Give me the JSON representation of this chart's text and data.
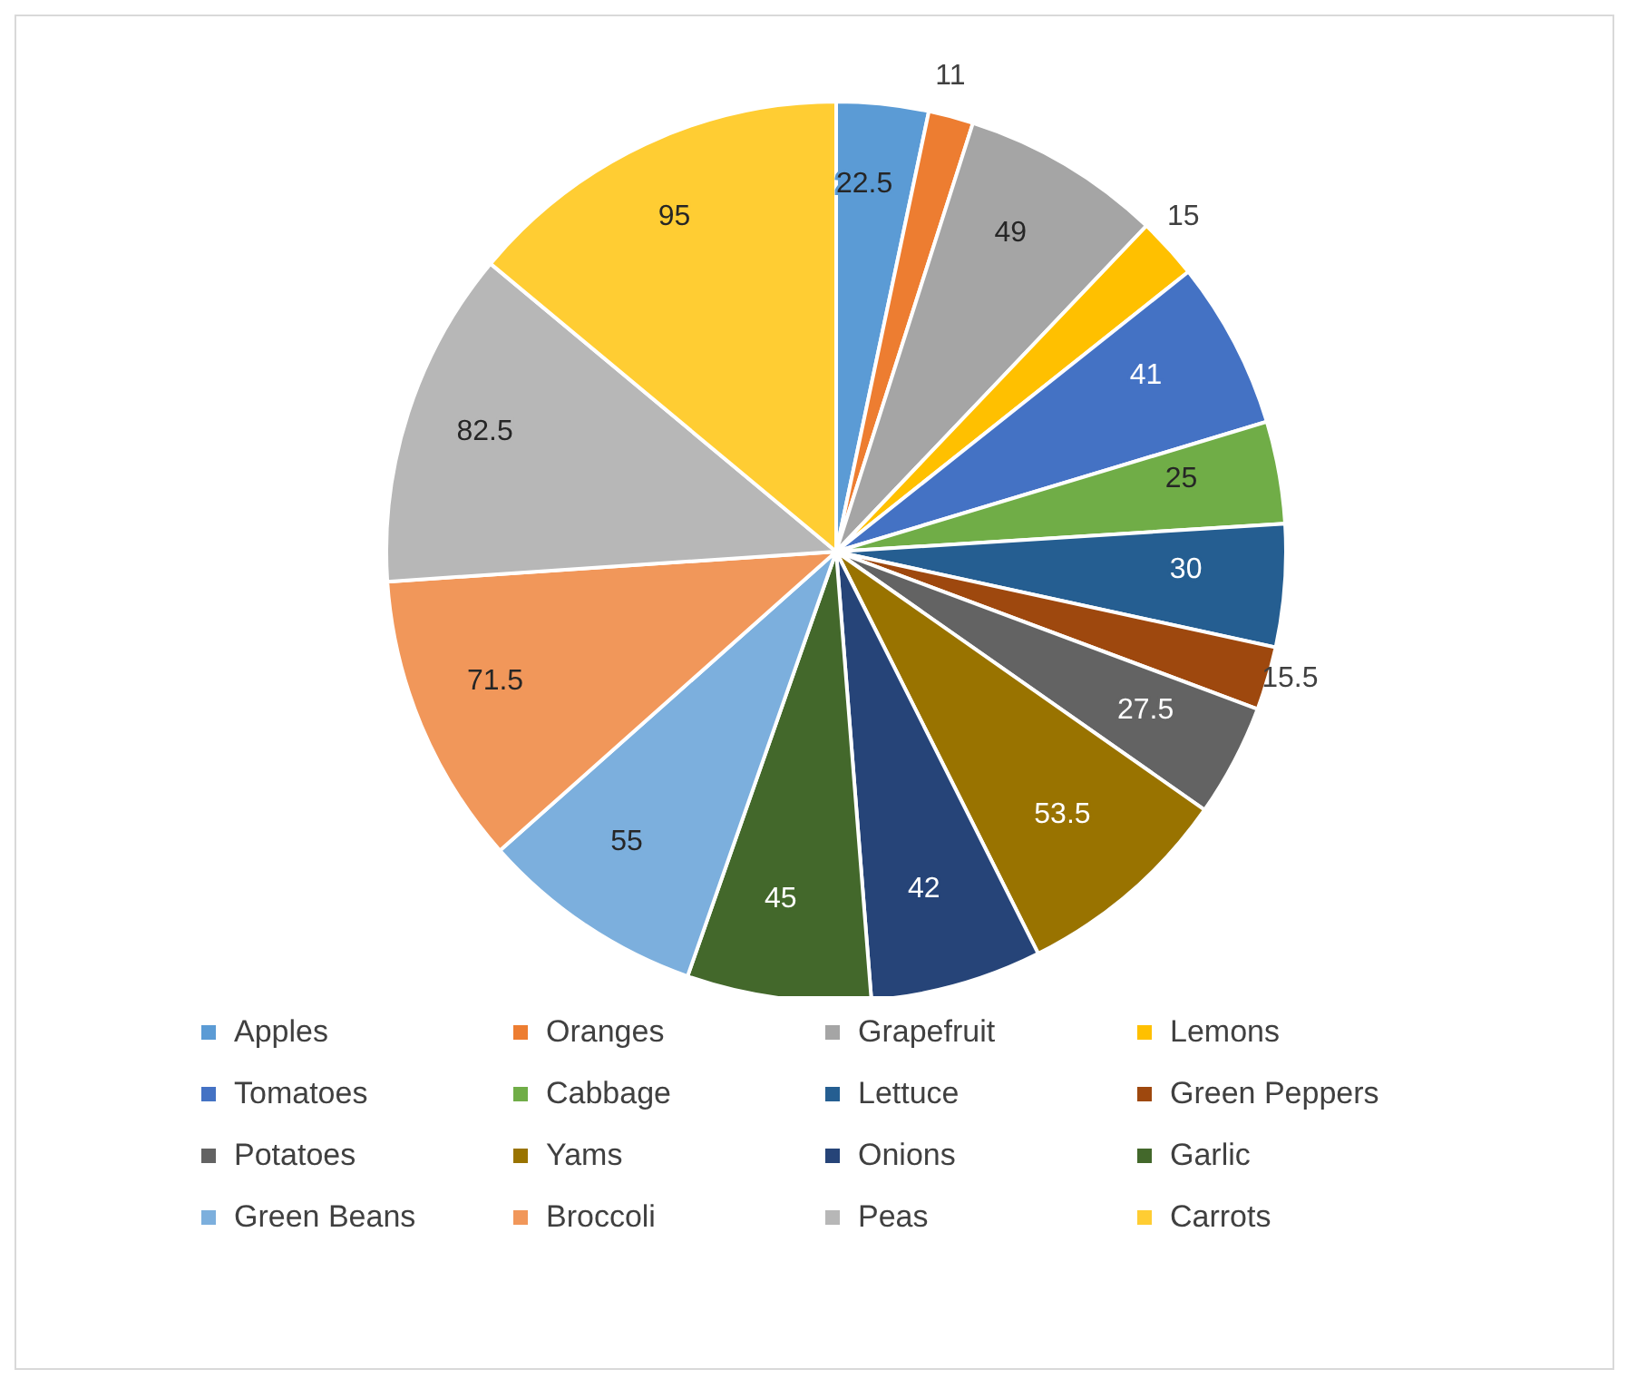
{
  "chart_data": {
    "type": "pie",
    "categories": [
      "Apples",
      "Oranges",
      "Grapefruit",
      "Lemons",
      "Tomatoes",
      "Cabbage",
      "Lettuce",
      "Green Peppers",
      "Potatoes",
      "Yams",
      "Onions",
      "Garlic",
      "Green Beans",
      "Broccoli",
      "Peas",
      "Carrots"
    ],
    "values": [
      22.5,
      11,
      49,
      15,
      41,
      25,
      30,
      15.5,
      27.5,
      53.5,
      42,
      45,
      55,
      71.5,
      82.5,
      95
    ],
    "colors": [
      "#5b9bd5",
      "#ed7d31",
      "#a5a5a5",
      "#ffc000",
      "#4472c4",
      "#70ad47",
      "#255e91",
      "#9e480e",
      "#636363",
      "#997300",
      "#264478",
      "#43682b",
      "#7cafdd",
      "#f1975a",
      "#b7b7b7",
      "#ffcd33"
    ],
    "data_labels": true,
    "legend": "bottom"
  }
}
